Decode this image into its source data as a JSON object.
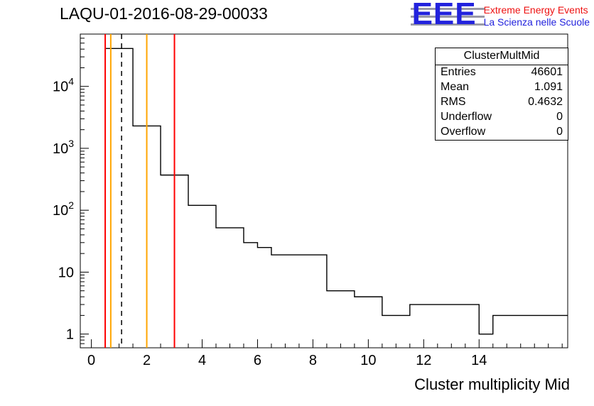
{
  "header": {
    "title": "LAQU-01-2016-08-29-00033"
  },
  "logo": {
    "text": "EEE",
    "line1": "Extreme Energy Events",
    "line2": "La Scienza nelle Scuole",
    "blue": "#2222dd",
    "red": "#ee1111",
    "stripe_gray": "#9a9aa6"
  },
  "stats": {
    "title": "ClusterMultMid",
    "rows": [
      {
        "label": "Entries",
        "value": "46601"
      },
      {
        "label": "Mean",
        "value": "1.091"
      },
      {
        "label": "RMS",
        "value": "0.4632"
      },
      {
        "label": "Underflow",
        "value": "0"
      },
      {
        "label": "Overflow",
        "value": "0"
      }
    ]
  },
  "chart_data": {
    "type": "bar",
    "subtype": "step-histogram-logy",
    "title": "LAQU-01-2016-08-29-00033",
    "xlabel": "Cluster multiplicity Mid",
    "ylabel": "",
    "y_scale": "log",
    "x_range": [
      -0.4,
      17.2
    ],
    "y_range": [
      0.6,
      70000
    ],
    "x_major_ticks": [
      0,
      2,
      4,
      6,
      8,
      10,
      12,
      14
    ],
    "x_minor_step": 0.5,
    "grid": "off",
    "legend": "none",
    "y_ticks": [
      {
        "value": 1,
        "label": "1",
        "exp": ""
      },
      {
        "value": 10,
        "label": "10",
        "exp": ""
      },
      {
        "value": 100,
        "label": "10",
        "exp": "2"
      },
      {
        "value": 1000,
        "label": "10",
        "exp": "3"
      },
      {
        "value": 10000,
        "label": "10",
        "exp": "4"
      }
    ],
    "bins": [
      {
        "x0": 0.5,
        "x1": 1.5,
        "count": 41000
      },
      {
        "x0": 1.5,
        "x1": 2.5,
        "count": 2300
      },
      {
        "x0": 2.5,
        "x1": 3.5,
        "count": 370
      },
      {
        "x0": 3.5,
        "x1": 4.5,
        "count": 120
      },
      {
        "x0": 4.5,
        "x1": 5.5,
        "count": 52
      },
      {
        "x0": 5.5,
        "x1": 6.0,
        "count": 30
      },
      {
        "x0": 6.0,
        "x1": 6.5,
        "count": 25
      },
      {
        "x0": 6.5,
        "x1": 8.5,
        "count": 19
      },
      {
        "x0": 8.5,
        "x1": 9.5,
        "count": 5
      },
      {
        "x0": 9.5,
        "x1": 10.5,
        "count": 4
      },
      {
        "x0": 10.5,
        "x1": 11.5,
        "count": 2
      },
      {
        "x0": 11.5,
        "x1": 14.0,
        "count": 3
      },
      {
        "x0": 14.0,
        "x1": 14.5,
        "count": 1
      },
      {
        "x0": 14.5,
        "x1": 17.2,
        "count": 2
      }
    ],
    "histogram_color": "#000000",
    "marker_lines": [
      {
        "x": 0.5,
        "color": "#ff0000",
        "style": "solid"
      },
      {
        "x": 0.7,
        "color": "#ffa500",
        "style": "solid"
      },
      {
        "x": 1.091,
        "color": "#000000",
        "style": "dashed"
      },
      {
        "x": 2.0,
        "color": "#ffa500",
        "style": "solid"
      },
      {
        "x": 3.0,
        "color": "#ff0000",
        "style": "solid"
      }
    ]
  }
}
